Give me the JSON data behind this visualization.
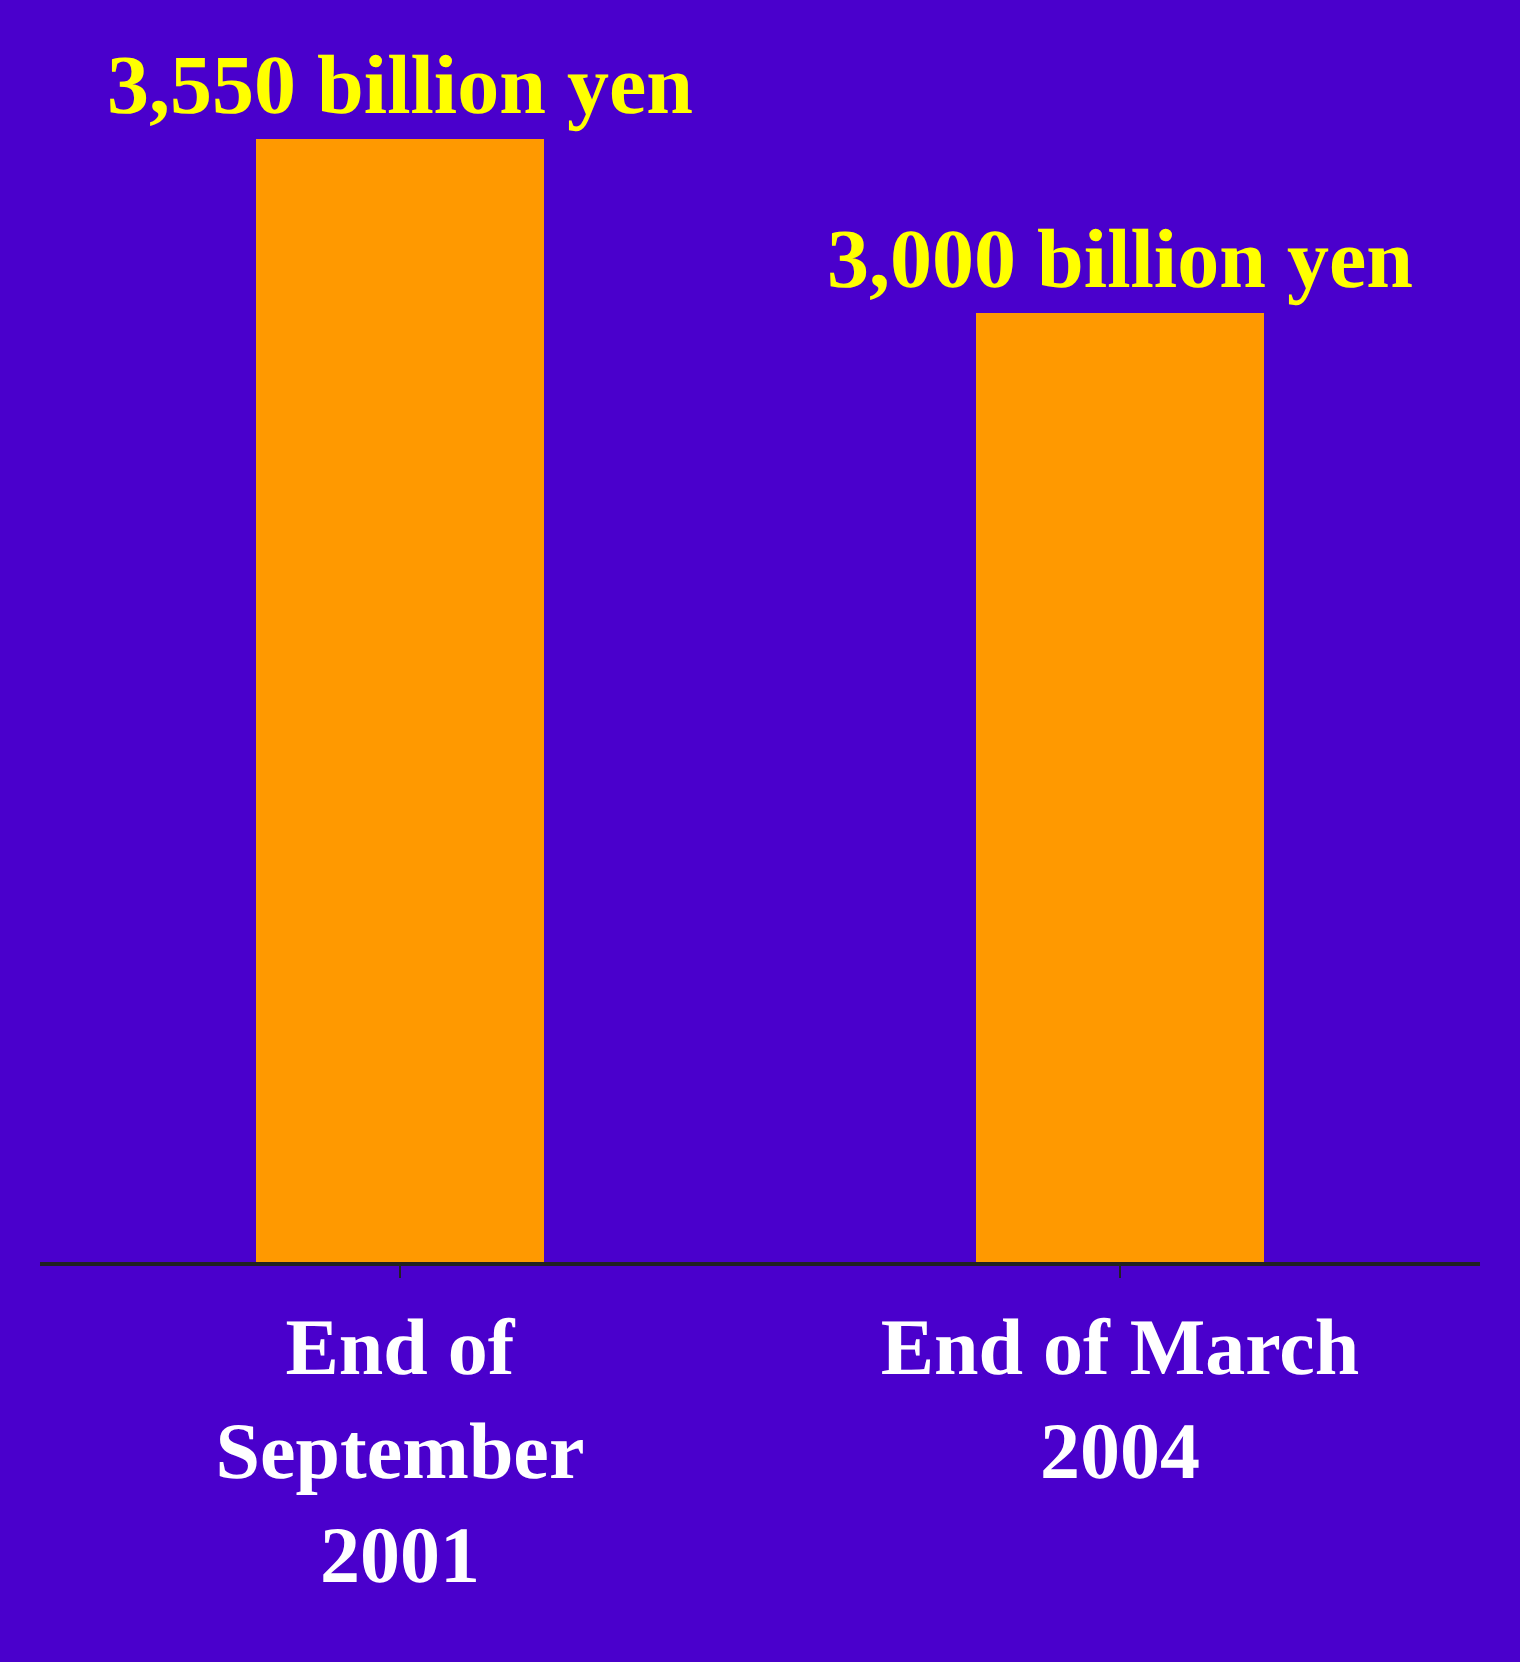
{
  "chart_data": {
    "type": "bar",
    "categories": [
      "End of September 2001",
      "End of March 2004"
    ],
    "values": [
      3550,
      3000
    ],
    "value_labels": [
      "3,550 billion yen",
      "3,000 billion yen"
    ],
    "color": "#ff9900",
    "grid": false,
    "legend": false
  }
}
